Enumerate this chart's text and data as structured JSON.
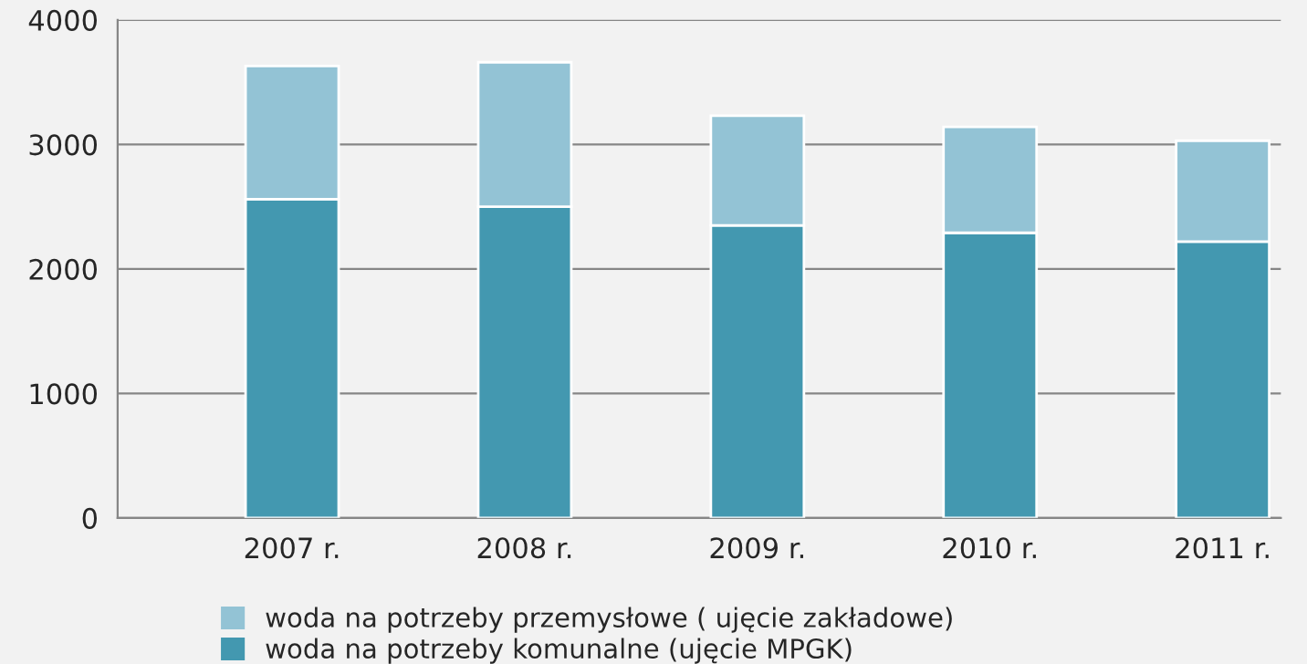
{
  "chart_data": {
    "type": "bar",
    "stacked": true,
    "categories": [
      "2007 r.",
      "2008 r.",
      "2009 r.",
      "2010 r.",
      "2011 r."
    ],
    "series": [
      {
        "name": "woda na potrzeby komunalne (ujęcie MPGK)",
        "color": "#4398b0",
        "values": [
          2560,
          2500,
          2350,
          2290,
          2220
        ]
      },
      {
        "name": "woda na potrzeby przemysłowe ( ujęcie zakładowe)",
        "color": "#93c3d5",
        "values": [
          1070,
          1160,
          880,
          850,
          810
        ]
      }
    ],
    "ylim": [
      0,
      4000
    ],
    "yticks": [
      0,
      1000,
      2000,
      3000,
      4000
    ],
    "grid": "y",
    "legend": "bottom"
  }
}
